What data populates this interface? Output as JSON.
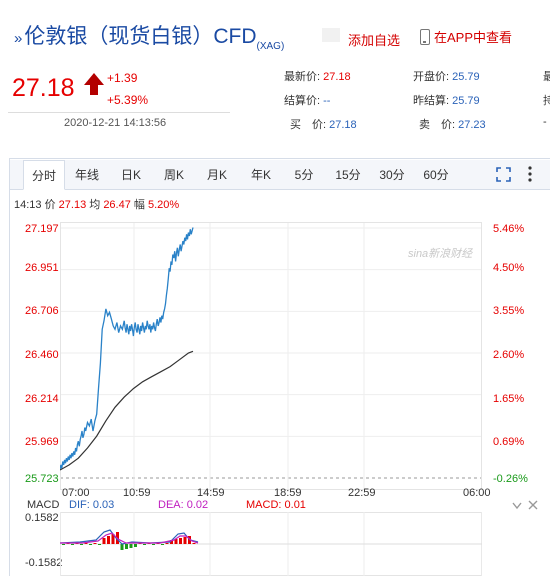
{
  "header": {
    "symbol_mark": "»",
    "title": "伦敦银（现货白银）CFD",
    "subtitle": "(XAG)",
    "add_watch": "添加自选",
    "app_link": "在APP中查看"
  },
  "price": {
    "last": "27.18",
    "change": "+1.39",
    "change_pct": "+5.39%",
    "datetime": "2020-12-21 14:13:56",
    "direction": "up"
  },
  "info": [
    {
      "label": "最新价:",
      "value": "27.18",
      "color": "red"
    },
    {
      "label": "开盘价:",
      "value": "25.79",
      "color": "blue"
    },
    {
      "label": "结算价:",
      "value": "--",
      "color": "blue"
    },
    {
      "label": "昨结算:",
      "value": "25.79",
      "color": "blue"
    },
    {
      "label": "买　价:",
      "value": "27.18",
      "color": "blue"
    },
    {
      "label": "卖　价:",
      "value": "27.23",
      "color": "blue"
    }
  ],
  "info_cut": [
    "最",
    "持",
    "-"
  ],
  "tabs": [
    "分时",
    "年线",
    "日K",
    "周K",
    "月K",
    "年K",
    "5分",
    "15分",
    "30分",
    "60分"
  ],
  "active_tab": 0,
  "quote": {
    "time": "14:13",
    "price_label": "价",
    "price": "27.13",
    "avg_label": "均",
    "avg": "26.47",
    "amp_label": "幅",
    "amp": "5.20%"
  },
  "watermark": "sina新浪财经",
  "colors": {
    "up": "#e60000",
    "down": "#1a9a1a",
    "price_line": "#2a82c8",
    "avg_line": "#333333",
    "brand_blue": "#1a4aa3"
  },
  "chart_data": {
    "type": "line",
    "y_left_ticks": [
      "27.197",
      "26.951",
      "26.706",
      "26.460",
      "26.214",
      "25.969",
      "25.723"
    ],
    "y_right_ticks": [
      "5.46%",
      "4.50%",
      "3.55%",
      "2.60%",
      "1.65%",
      "0.69%",
      "-0.26%"
    ],
    "ylim": [
      25.723,
      27.197
    ],
    "x_ticks": [
      "07:00",
      "10:59",
      "14:59",
      "18:59",
      "22:59",
      "06:00"
    ],
    "series": [
      {
        "x": [
          0,
          0.05,
          0.1,
          0.15,
          0.2,
          0.25,
          0.3,
          0.35,
          0.4,
          0.45,
          0.5,
          0.55,
          0.6,
          0.65,
          0.7,
          0.75,
          0.8,
          0.85,
          0.9,
          0.95,
          1.0,
          1.05,
          1.1,
          1.15,
          1.2,
          1.25,
          1.3,
          1.35,
          1.4,
          1.5,
          1.6,
          1.7,
          1.8,
          1.9,
          2.0,
          2.1,
          2.2,
          2.3,
          2.4,
          2.5,
          2.6,
          2.7,
          2.8,
          2.9,
          3.0,
          3.1,
          3.2,
          3.3,
          3.4,
          3.5,
          3.55,
          3.6,
          3.65,
          3.7,
          3.75,
          3.8,
          3.85,
          3.9,
          3.95,
          4.0,
          4.05,
          4.1,
          4.15,
          4.2,
          4.25,
          4.3,
          4.35,
          4.4,
          4.45,
          4.5,
          4.55,
          4.6,
          4.65,
          4.7,
          4.75,
          4.8,
          4.85,
          4.9,
          4.95,
          5.0,
          5.05,
          5.1,
          5.15,
          5.2,
          5.25,
          5.3,
          5.35,
          5.4,
          5.45,
          5.5,
          5.55,
          5.6,
          5.65,
          5.7,
          5.75,
          5.8,
          5.85,
          5.9,
          5.95,
          6.0,
          6.05,
          6.1,
          6.15,
          6.2,
          6.25,
          6.3,
          6.35,
          6.4,
          6.45,
          6.5,
          6.55,
          6.6,
          6.65,
          6.7,
          6.75,
          6.8,
          6.85,
          6.9,
          6.95,
          7.0,
          7.05,
          7.1,
          7.15,
          7.2,
          7.25
        ],
        "values": [
          25.77,
          25.8,
          25.78,
          25.82,
          25.8,
          25.83,
          25.81,
          25.84,
          25.82,
          25.85,
          25.83,
          25.86,
          25.84,
          25.87,
          25.85,
          25.88,
          25.86,
          25.9,
          25.88,
          25.92,
          25.94,
          25.91,
          25.95,
          25.97,
          26.0,
          25.96,
          25.98,
          26.02,
          26.0,
          26.05,
          26.03,
          26.07,
          26.0,
          26.06,
          26.1,
          26.25,
          26.4,
          26.6,
          26.65,
          26.72,
          26.68,
          26.7,
          26.66,
          26.62,
          26.6,
          26.64,
          26.58,
          26.62,
          26.6,
          26.65,
          26.61,
          26.58,
          26.63,
          26.6,
          26.57,
          26.62,
          26.59,
          26.63,
          26.6,
          26.56,
          26.61,
          26.64,
          26.6,
          26.58,
          26.63,
          26.6,
          26.57,
          26.62,
          26.59,
          26.64,
          26.61,
          26.58,
          26.62,
          26.6,
          26.65,
          26.62,
          26.6,
          26.63,
          26.58,
          26.62,
          26.6,
          26.64,
          26.61,
          26.59,
          26.63,
          26.66,
          26.62,
          26.64,
          26.67,
          26.64,
          26.68,
          26.66,
          26.7,
          26.72,
          26.75,
          26.8,
          26.84,
          26.9,
          26.96,
          26.94,
          27.0,
          26.98,
          27.04,
          27.02,
          27.06,
          27.0,
          27.05,
          27.08,
          27.03,
          27.07,
          27.1,
          27.06,
          27.09,
          27.12,
          27.1,
          27.14,
          27.12,
          27.16,
          27.13,
          27.17,
          27.15,
          27.19,
          27.16,
          27.18,
          27.2
        ]
      },
      {
        "x": [
          0,
          0.5,
          1.0,
          1.5,
          2.0,
          2.5,
          3.0,
          3.5,
          4.0,
          4.5,
          5.0,
          5.5,
          6.0,
          6.5,
          7.0,
          7.25
        ],
        "values": [
          25.77,
          25.8,
          25.84,
          25.9,
          25.97,
          26.06,
          26.14,
          26.2,
          26.25,
          26.29,
          26.32,
          26.35,
          26.38,
          26.42,
          26.46,
          26.47
        ]
      }
    ],
    "x_total": 23,
    "macd": {
      "dif_label": "DIF:",
      "dif": "0.03",
      "dea_label": "DEA:",
      "dea": "0.02",
      "macd_label": "MACD:",
      "macd_val": "0.01",
      "ylim": [
        -0.1582,
        0.1582
      ],
      "y_ticks": [
        "0.1582",
        "-0.1582"
      ]
    }
  }
}
